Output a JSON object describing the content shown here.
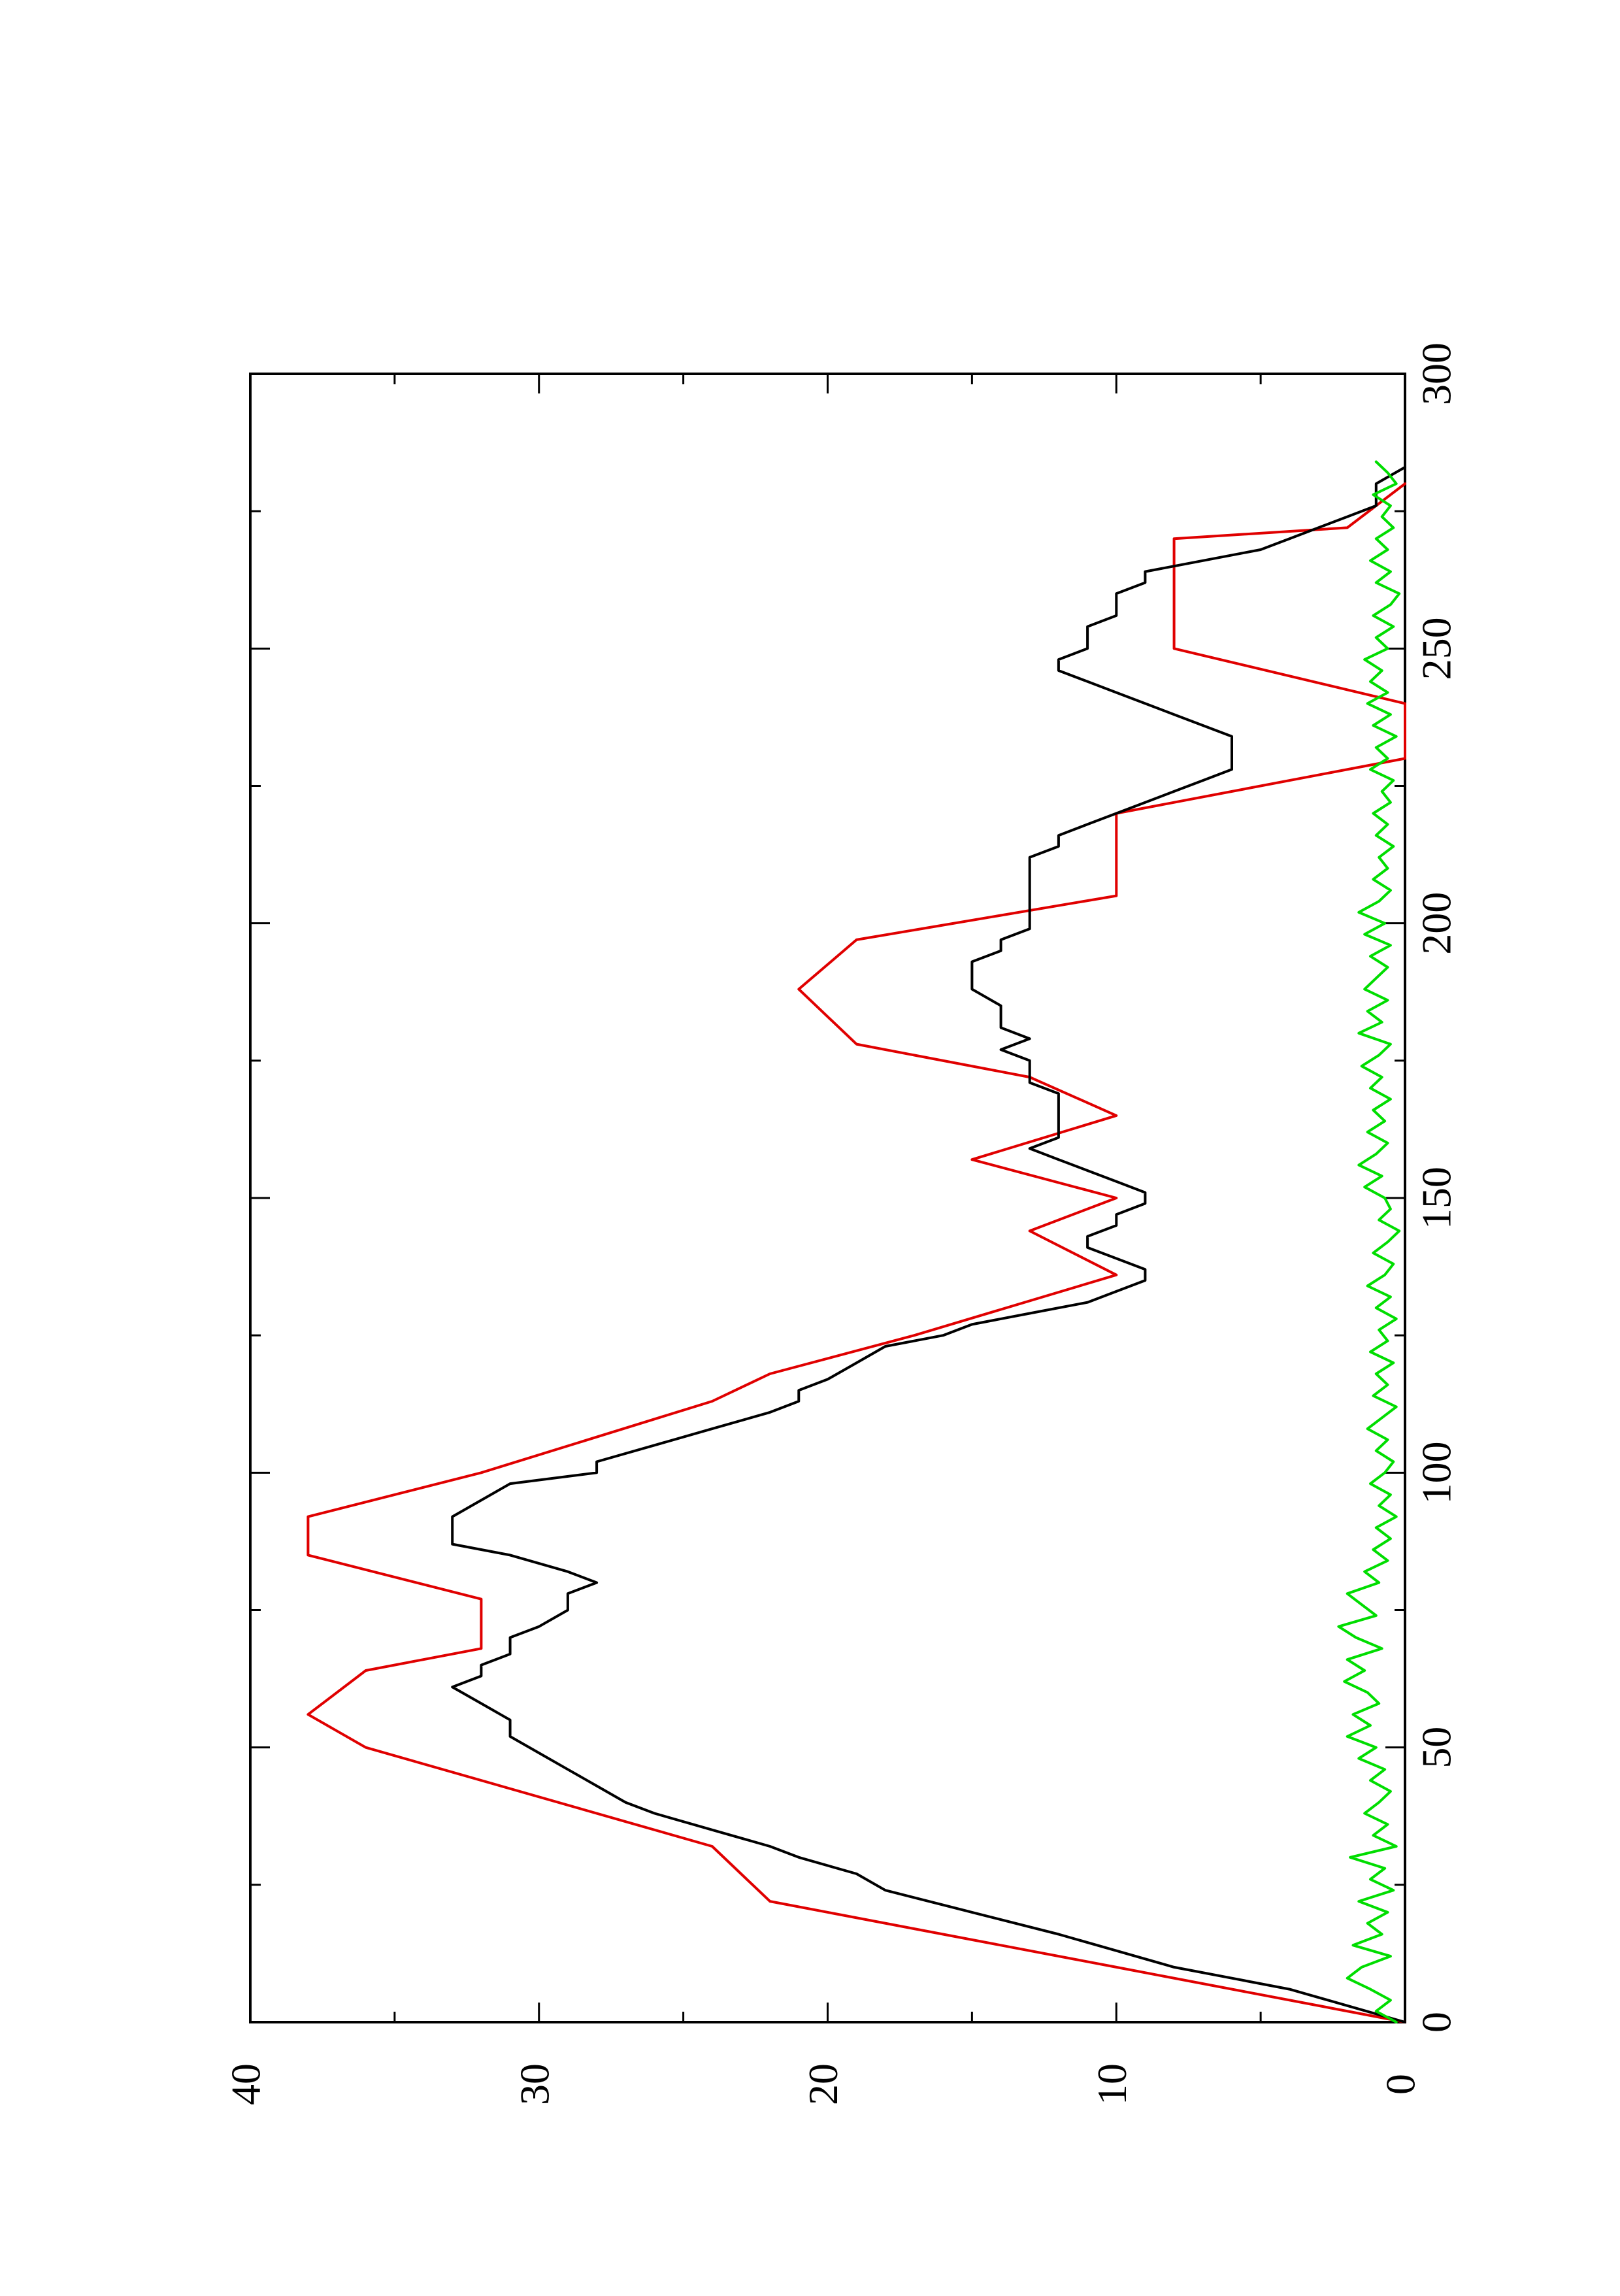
{
  "chart_data": {
    "type": "line",
    "title": "",
    "xlabel": "",
    "ylabel": "",
    "xlim": [
      0,
      300
    ],
    "ylim": [
      0,
      40
    ],
    "x_ticks": [
      0,
      50,
      100,
      150,
      200,
      250,
      300
    ],
    "x_tick_labels": [
      "0",
      "50",
      "100",
      "150",
      "200",
      "250",
      "300"
    ],
    "y_ticks": [
      0,
      10,
      20,
      30,
      40
    ],
    "y_tick_labels": [
      "0",
      "10",
      "20",
      "30",
      "40"
    ],
    "grid": false,
    "orientation": "rotated-90-ccw",
    "series": [
      {
        "color": "#e00000",
        "style": "step",
        "x": [
          0,
          10,
          10,
          17,
          17,
          22,
          22,
          32,
          32,
          50,
          50,
          56,
          56,
          64,
          64,
          68,
          68,
          77,
          77,
          85,
          85,
          92,
          92,
          100,
          100,
          113,
          113,
          118,
          118,
          125,
          125,
          136,
          136,
          144,
          144,
          150,
          150,
          157,
          157,
          165,
          165,
          172,
          172,
          178,
          178,
          188,
          188,
          197,
          197,
          205,
          205,
          220,
          220,
          230,
          230,
          240,
          240,
          250,
          250,
          270,
          270,
          272,
          272,
          280
        ],
        "y": [
          0,
          10,
          10,
          17,
          17,
          22,
          22,
          24,
          24,
          36,
          36,
          38,
          38,
          36,
          36,
          32,
          32,
          32,
          32,
          38,
          38,
          38,
          38,
          32,
          32,
          24,
          24,
          22,
          22,
          17,
          17,
          10,
          10,
          13,
          13,
          10,
          10,
          15,
          15,
          10,
          10,
          13,
          13,
          19,
          19,
          21,
          21,
          19,
          19,
          10,
          10,
          10,
          10,
          0,
          0,
          0,
          0,
          8,
          8,
          8,
          8,
          2,
          2,
          0
        ]
      },
      {
        "color": "#000000",
        "style": "line",
        "x": [
          0,
          3,
          6,
          8,
          10,
          13,
          16,
          20,
          24,
          27,
          30,
          32,
          35,
          38,
          40,
          43,
          46,
          49,
          52,
          55,
          58,
          61,
          63,
          65,
          67,
          70,
          72,
          75,
          78,
          80,
          82,
          85,
          87,
          89,
          92,
          95,
          98,
          100,
          102,
          105,
          108,
          111,
          113,
          115,
          117,
          120,
          123,
          125,
          127,
          129,
          131,
          133,
          135,
          137,
          139,
          141,
          143,
          145,
          147,
          149,
          151,
          153,
          155,
          157,
          159,
          161,
          163,
          165,
          167,
          169,
          171,
          173,
          175,
          177,
          179,
          181,
          183,
          185,
          188,
          191,
          193,
          195,
          197,
          199,
          201,
          203,
          205,
          207,
          210,
          212,
          214,
          216,
          218,
          220,
          222,
          224,
          226,
          228,
          230,
          232,
          234,
          236,
          238,
          240,
          242,
          244,
          246,
          248,
          250,
          252,
          254,
          256,
          258,
          260,
          262,
          264,
          266,
          268,
          270,
          272,
          274,
          276,
          278,
          280,
          283
        ],
        "y": [
          0,
          2,
          4,
          6,
          8,
          10,
          12,
          15,
          18,
          19,
          21,
          22,
          24,
          26,
          27,
          28,
          29,
          30,
          31,
          31,
          32,
          33,
          32,
          32,
          31,
          31,
          30,
          29,
          29,
          28,
          29,
          31,
          33,
          33,
          33,
          32,
          31,
          28,
          28,
          26,
          24,
          22,
          21,
          21,
          20,
          19,
          18,
          16,
          15,
          13,
          11,
          10,
          9,
          9,
          10,
          11,
          11,
          10,
          10,
          9,
          9,
          10,
          11,
          12,
          13,
          12,
          12,
          12,
          12,
          12,
          13,
          13,
          13,
          14,
          13,
          14,
          14,
          14,
          15,
          15,
          15,
          14,
          14,
          13,
          13,
          13,
          13,
          13,
          13,
          13,
          12,
          12,
          11,
          10,
          9,
          8,
          7,
          6,
          6,
          6,
          6,
          7,
          8,
          9,
          10,
          11,
          12,
          12,
          11,
          11,
          11,
          10,
          10,
          10,
          9,
          9,
          7,
          5,
          4,
          3,
          2,
          1,
          1,
          1,
          0
        ]
      },
      {
        "color": "#00dd00",
        "style": "line",
        "x": [
          0,
          2,
          4,
          6,
          8,
          10,
          12,
          14,
          16,
          18,
          20,
          22,
          24,
          26,
          28,
          30,
          32,
          34,
          36,
          38,
          40,
          42,
          44,
          46,
          48,
          50,
          52,
          54,
          56,
          58,
          60,
          62,
          64,
          66,
          68,
          70,
          72,
          74,
          76,
          78,
          80,
          82,
          84,
          86,
          88,
          90,
          92,
          94,
          96,
          98,
          100,
          102,
          104,
          106,
          108,
          110,
          112,
          114,
          116,
          118,
          120,
          122,
          124,
          126,
          128,
          130,
          132,
          134,
          136,
          138,
          140,
          142,
          144,
          146,
          148,
          150,
          152,
          154,
          156,
          158,
          160,
          162,
          164,
          166,
          168,
          170,
          172,
          174,
          176,
          178,
          180,
          182,
          184,
          186,
          188,
          190,
          192,
          194,
          196,
          198,
          200,
          202,
          204,
          206,
          208,
          210,
          212,
          214,
          216,
          218,
          220,
          222,
          224,
          226,
          228,
          230,
          232,
          234,
          236,
          238,
          240,
          242,
          244,
          246,
          248,
          250,
          252,
          254,
          256,
          258,
          260,
          262,
          264,
          266,
          268,
          270,
          272,
          274,
          276,
          278,
          280,
          282,
          284
        ],
        "y": [
          0.3,
          1.0,
          0.5,
          1.2,
          2.0,
          1.5,
          0.5,
          1.8,
          0.8,
          1.3,
          0.6,
          1.6,
          0.4,
          1.2,
          0.7,
          1.9,
          0.3,
          1.1,
          0.6,
          1.4,
          0.9,
          0.5,
          1.2,
          0.7,
          1.6,
          1.0,
          2.0,
          1.2,
          1.8,
          0.9,
          1.3,
          2.1,
          1.4,
          2.0,
          0.8,
          1.7,
          2.3,
          1.0,
          1.5,
          2.0,
          0.9,
          1.4,
          0.6,
          1.1,
          0.5,
          1.0,
          0.3,
          0.9,
          0.5,
          1.2,
          0.7,
          0.4,
          1.0,
          0.6,
          1.3,
          0.8,
          0.3,
          1.1,
          0.6,
          1.0,
          0.4,
          1.2,
          0.6,
          0.9,
          0.3,
          1.0,
          0.5,
          1.3,
          0.7,
          0.4,
          1.1,
          0.6,
          0.2,
          0.9,
          0.5,
          0.7,
          1.4,
          0.8,
          1.6,
          1.0,
          0.6,
          1.3,
          0.7,
          1.1,
          0.5,
          1.2,
          0.8,
          1.5,
          0.9,
          0.5,
          1.6,
          0.8,
          1.3,
          0.6,
          1.4,
          1.0,
          0.6,
          1.2,
          0.5,
          1.4,
          0.7,
          1.6,
          0.9,
          0.5,
          1.1,
          0.6,
          0.9,
          0.4,
          1.0,
          0.6,
          1.1,
          0.5,
          0.8,
          0.4,
          1.2,
          0.6,
          1.0,
          0.3,
          1.1,
          0.5,
          1.3,
          0.6,
          1.2,
          0.8,
          1.4,
          0.6,
          1.0,
          0.4,
          1.1,
          0.5,
          0.2,
          1.0,
          0.5,
          1.2,
          0.6,
          1.0,
          0.4,
          0.8,
          0.5,
          1.1,
          0.3,
          0.6,
          1.0
        ]
      }
    ]
  }
}
